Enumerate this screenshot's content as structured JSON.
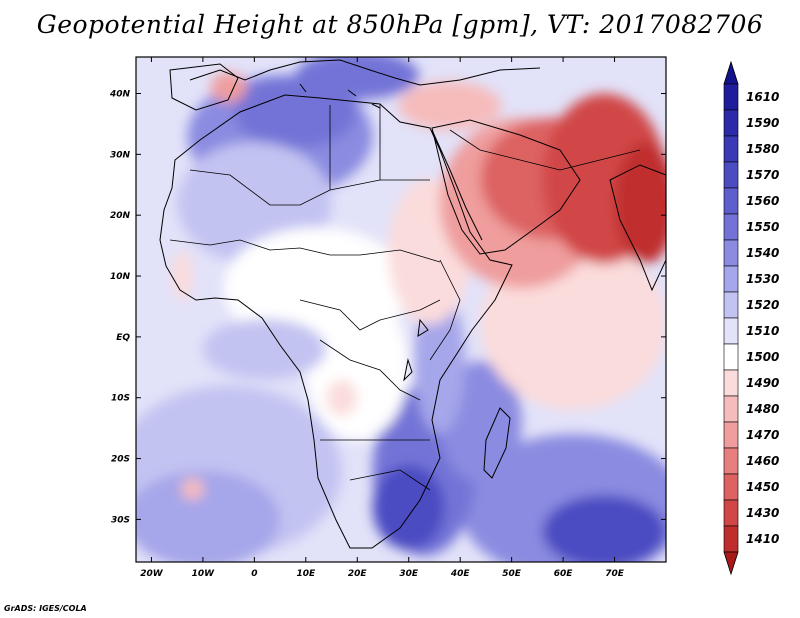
{
  "title": "Geopotential Height at 850hPa [gpm], VT: 2017082706",
  "credit": "GrADS: IGES/COLA",
  "map": {
    "projection": "lat-lon",
    "lon_range": [
      -23,
      80
    ],
    "lat_range": [
      -37,
      46
    ],
    "x_ticks": [
      {
        "value": -20,
        "label": "20W"
      },
      {
        "value": -10,
        "label": "10W"
      },
      {
        "value": 0,
        "label": "0"
      },
      {
        "value": 10,
        "label": "10E"
      },
      {
        "value": 20,
        "label": "20E"
      },
      {
        "value": 30,
        "label": "30E"
      },
      {
        "value": 40,
        "label": "40E"
      },
      {
        "value": 50,
        "label": "50E"
      },
      {
        "value": 60,
        "label": "60E"
      },
      {
        "value": 70,
        "label": "70E"
      }
    ],
    "y_ticks": [
      {
        "value": 40,
        "label": "40N"
      },
      {
        "value": 30,
        "label": "30N"
      },
      {
        "value": 20,
        "label": "20N"
      },
      {
        "value": 10,
        "label": "10N"
      },
      {
        "value": 0,
        "label": "EQ"
      },
      {
        "value": -10,
        "label": "10S"
      },
      {
        "value": -20,
        "label": "20S"
      },
      {
        "value": -30,
        "label": "30S"
      }
    ]
  },
  "colorbar": {
    "levels": [
      {
        "label": "1610",
        "color": "#1e1e9c"
      },
      {
        "label": "1590",
        "color": "#2b2ba9"
      },
      {
        "label": "1580",
        "color": "#3a3ab6"
      },
      {
        "label": "1570",
        "color": "#4b4bc2"
      },
      {
        "label": "1560",
        "color": "#5e5ecd"
      },
      {
        "label": "1550",
        "color": "#7373d7"
      },
      {
        "label": "1540",
        "color": "#8b8be1"
      },
      {
        "label": "1530",
        "color": "#a6a6ea"
      },
      {
        "label": "1520",
        "color": "#c3c3f2"
      },
      {
        "label": "1510",
        "color": "#e2e2f9"
      },
      {
        "label": "1500",
        "color": "#ffffff"
      },
      {
        "label": "1490",
        "color": "#fbdcdc"
      },
      {
        "label": "1480",
        "color": "#f6bcbc"
      },
      {
        "label": "1470",
        "color": "#ef9d9d"
      },
      {
        "label": "1460",
        "color": "#e77f7f"
      },
      {
        "label": "1450",
        "color": "#dd6262"
      },
      {
        "label": "1430",
        "color": "#d14646"
      },
      {
        "label": "1410",
        "color": "#c02d2d"
      }
    ],
    "top_cap_color": "#12128c",
    "bottom_cap_color": "#a81a1a"
  },
  "field": {
    "base_color": "#e2e2f9",
    "regions": [
      {
        "name": "south-atlantic-high",
        "color": "#c3c3f2",
        "lon": -5,
        "lat": -22,
        "rx": 22,
        "ry": 14
      },
      {
        "name": "south-atlantic-high-core",
        "color": "#a6a6ea",
        "lon": -10,
        "lat": -30,
        "rx": 15,
        "ry": 8
      },
      {
        "name": "south-atlantic-low-pocket",
        "color": "#f6bcbc",
        "lon": -12,
        "lat": -25,
        "rx": 2.2,
        "ry": 1.8
      },
      {
        "name": "indian-ocean-high",
        "color": "#8b8be1",
        "lon": 62,
        "lat": -28,
        "rx": 22,
        "ry": 12
      },
      {
        "name": "indian-ocean-high-core",
        "color": "#4b4bc2",
        "lon": 68,
        "lat": -32,
        "rx": 12,
        "ry": 6
      },
      {
        "name": "southern-africa-high",
        "color": "#7373d7",
        "lon": 33,
        "lat": -22,
        "rx": 10,
        "ry": 14
      },
      {
        "name": "southern-africa-core",
        "color": "#4b4bc2",
        "lon": 30,
        "lat": -28,
        "rx": 7,
        "ry": 7
      },
      {
        "name": "mozambique-channel",
        "color": "#8b8be1",
        "lon": 44,
        "lat": -14,
        "rx": 8,
        "ry": 10
      },
      {
        "name": "east-africa-ridge",
        "color": "#a6a6ea",
        "lon": 36,
        "lat": -4,
        "rx": 5,
        "ry": 12
      },
      {
        "name": "north-africa-west-high",
        "color": "#8b8be1",
        "lon": 5,
        "lat": 33,
        "rx": 18,
        "ry": 10
      },
      {
        "name": "north-africa-west-core",
        "color": "#7373d7",
        "lon": 8,
        "lat": 37,
        "rx": 12,
        "ry": 6
      },
      {
        "name": "europe-high",
        "color": "#7373d7",
        "lon": 20,
        "lat": 43,
        "rx": 12,
        "ry": 4
      },
      {
        "name": "sahara-mid",
        "color": "#c3c3f2",
        "lon": 0,
        "lat": 22,
        "rx": 15,
        "ry": 10
      },
      {
        "name": "sahel-white",
        "color": "#ffffff",
        "lon": 12,
        "lat": 8,
        "rx": 18,
        "ry": 10
      },
      {
        "name": "central-africa-white",
        "color": "#ffffff",
        "lon": 20,
        "lat": -5,
        "rx": 10,
        "ry": 12
      },
      {
        "name": "angola-pink",
        "color": "#fbdcdc",
        "lon": 17,
        "lat": -10,
        "rx": 3,
        "ry": 3
      },
      {
        "name": "gulf-guinea-blue",
        "color": "#c3c3f2",
        "lon": 2,
        "lat": -2,
        "rx": 12,
        "ry": 5
      },
      {
        "name": "ethiopia-pink",
        "color": "#fbdcdc",
        "lon": 34,
        "lat": 14,
        "rx": 8,
        "ry": 12
      },
      {
        "name": "west-indian-ocean-pink",
        "color": "#fbdcdc",
        "lon": 62,
        "lat": 2,
        "rx": 18,
        "ry": 14
      },
      {
        "name": "arabia-low",
        "color": "#ef9d9d",
        "lon": 52,
        "lat": 22,
        "rx": 16,
        "ry": 14
      },
      {
        "name": "arabia-low-core",
        "color": "#dd6262",
        "lon": 58,
        "lat": 26,
        "rx": 14,
        "ry": 10
      },
      {
        "name": "persia-low",
        "color": "#d14646",
        "lon": 68,
        "lat": 26,
        "rx": 12,
        "ry": 14
      },
      {
        "name": "india-low-core",
        "color": "#c02d2d",
        "lon": 76,
        "lat": 22,
        "rx": 6,
        "ry": 10
      },
      {
        "name": "mediterranean-east-pink",
        "color": "#f6bcbc",
        "lon": 38,
        "lat": 38,
        "rx": 10,
        "ry": 4
      },
      {
        "name": "iberia-pink",
        "color": "#ef9d9d",
        "lon": -5,
        "lat": 41,
        "rx": 3.5,
        "ry": 2.5
      },
      {
        "name": "morocco-coast-pink",
        "color": "#fbdcdc",
        "lon": -14,
        "lat": 10,
        "rx": 2,
        "ry": 4
      }
    ]
  }
}
